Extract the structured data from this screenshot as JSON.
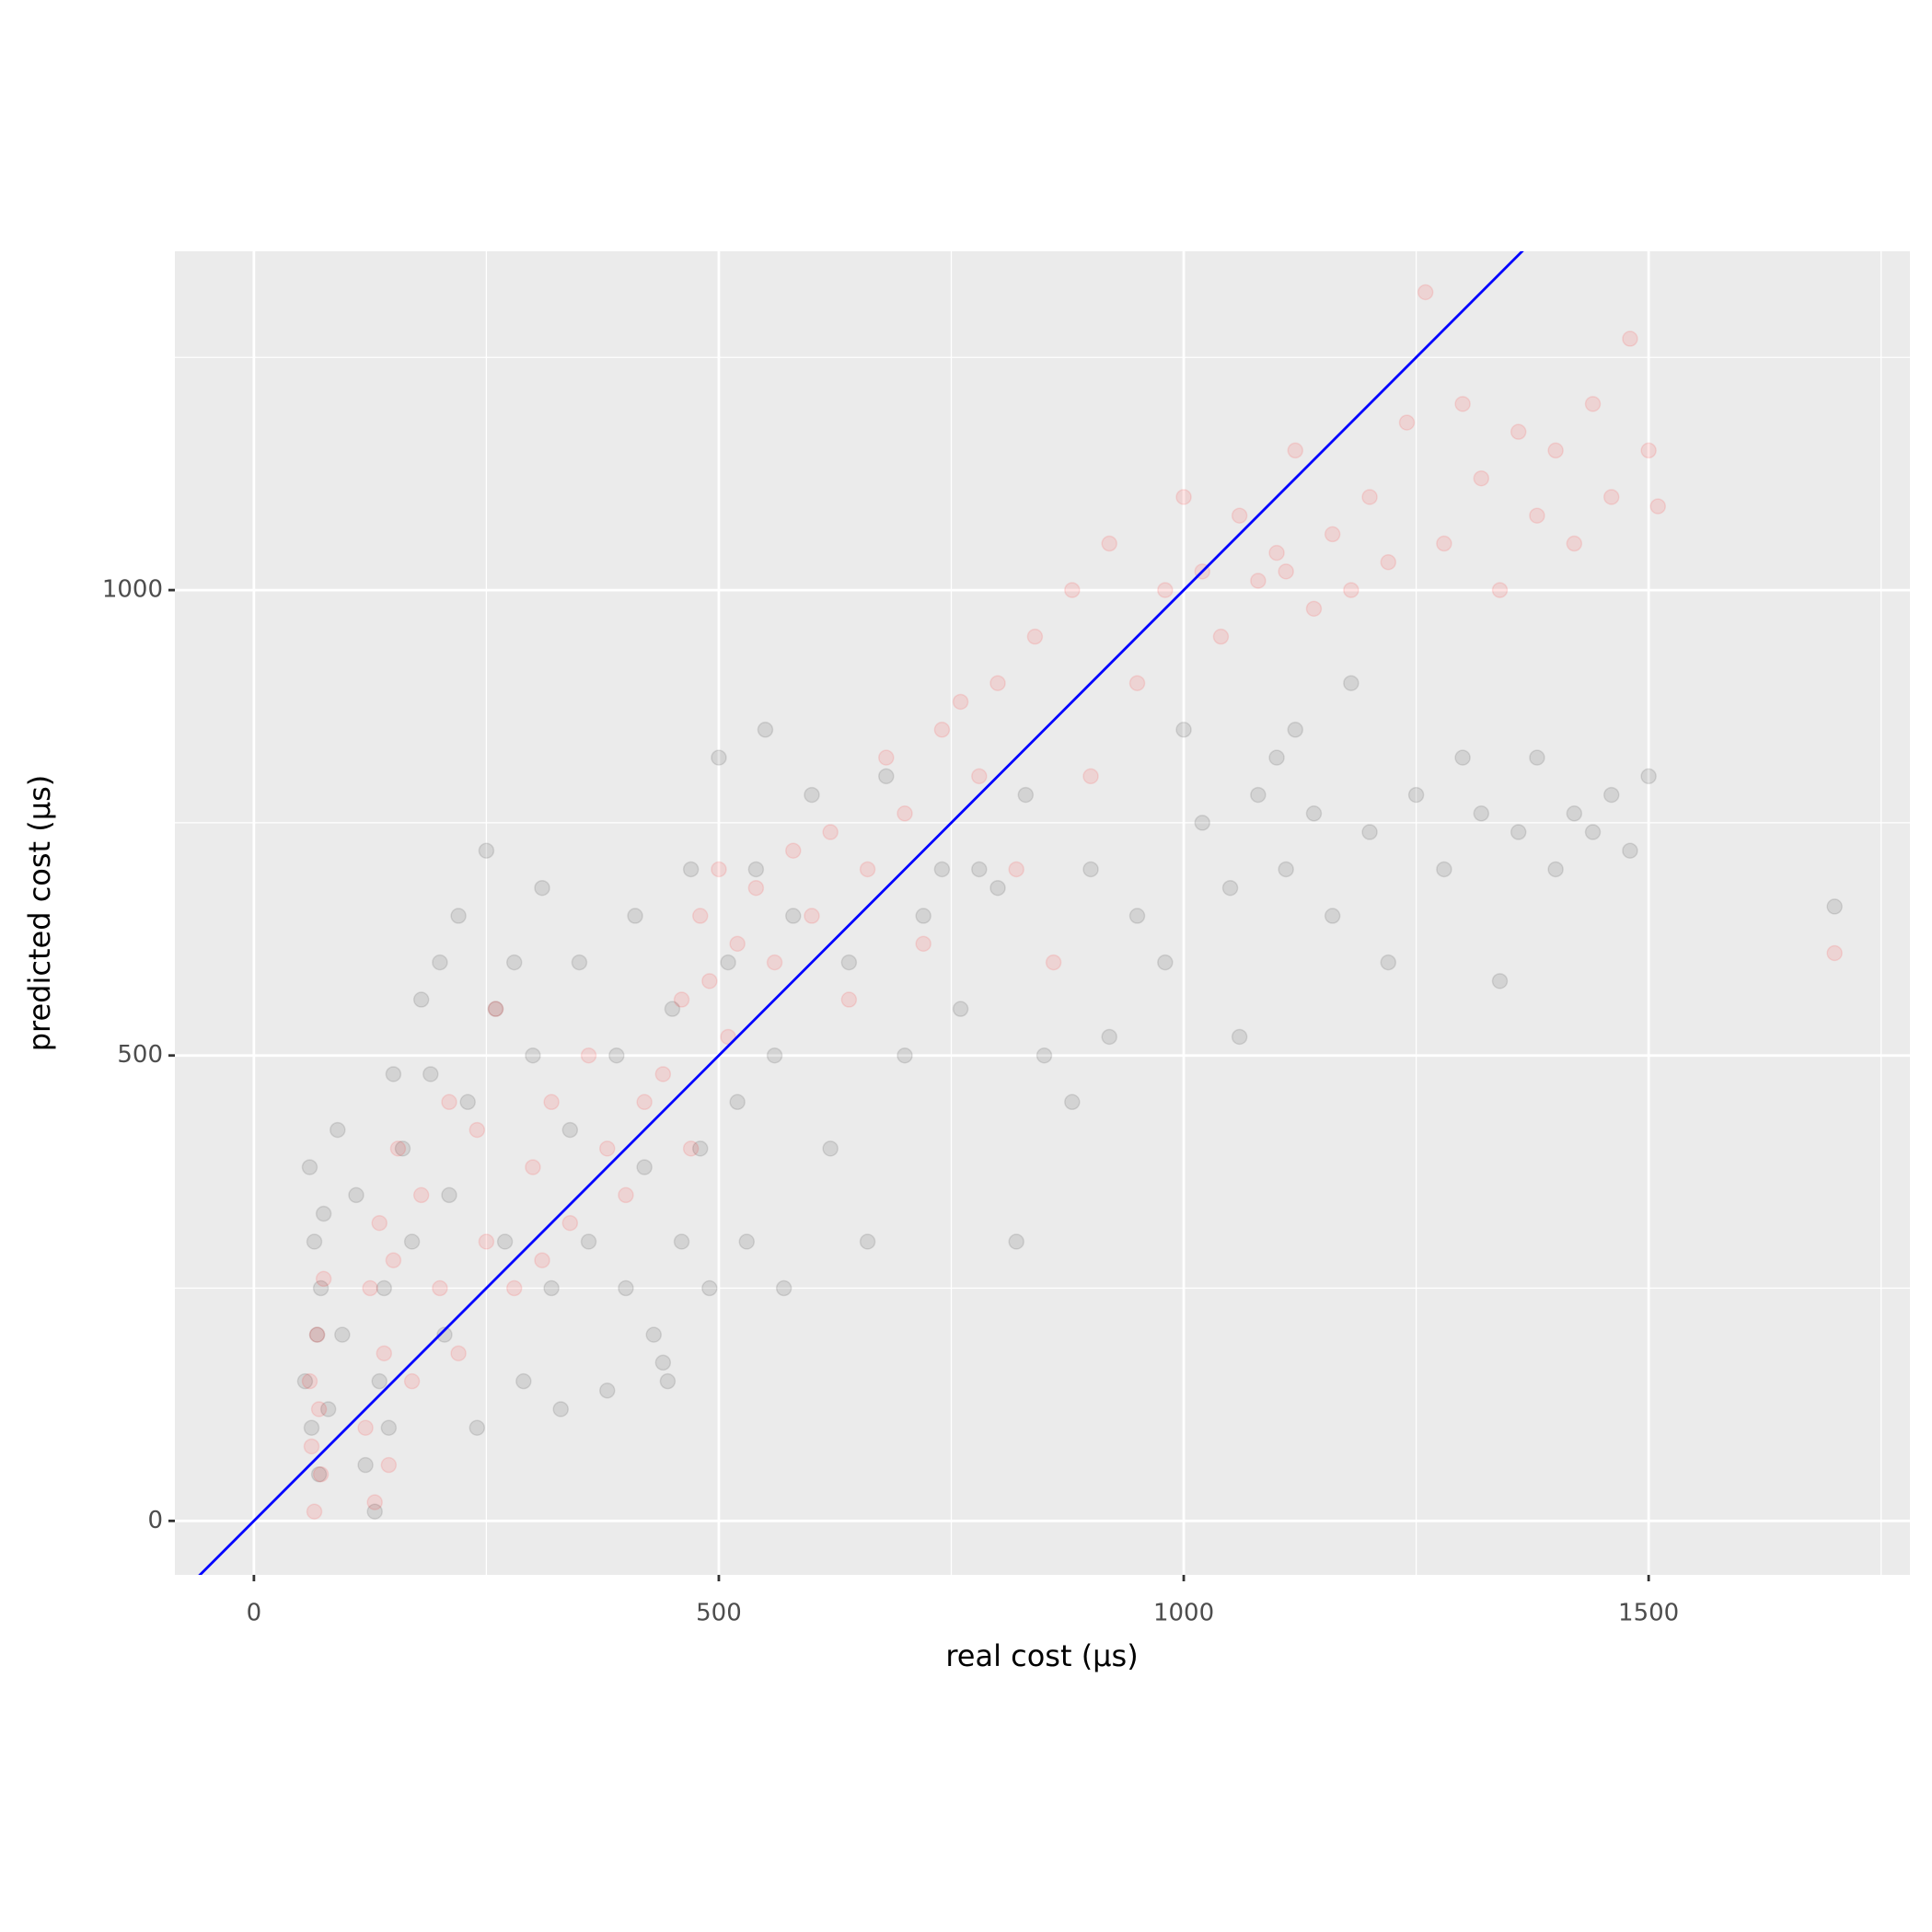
{
  "chart_data": {
    "type": "scatter",
    "x_label": "real cost (µs)",
    "y_label": "predicted cost (µs)",
    "xlim": [
      -85,
      1781
    ],
    "ylim": [
      -58,
      1364
    ],
    "xticks": [
      0,
      500,
      1000,
      1500
    ],
    "yticks": [
      0,
      500,
      1000
    ],
    "minor_xticks": [
      250,
      750,
      1250,
      1750
    ],
    "minor_yticks": [
      250,
      750,
      1250
    ],
    "grid": true,
    "alpha": 0.1,
    "reference_line": {
      "slope": 1,
      "intercept": 0,
      "color": "#0000ff"
    },
    "series": [
      {
        "color": "#000000",
        "x": [
          55,
          60,
          62,
          65,
          68,
          70,
          72,
          75,
          80,
          90,
          95,
          110,
          120,
          130,
          135,
          140,
          145,
          150,
          160,
          170,
          180,
          190,
          200,
          205,
          210,
          220,
          230,
          240,
          250,
          260,
          270,
          280,
          290,
          300,
          310,
          320,
          330,
          340,
          350,
          360,
          380,
          390,
          400,
          410,
          420,
          430,
          440,
          445,
          450,
          460,
          470,
          480,
          490,
          500,
          510,
          520,
          530,
          540,
          550,
          560,
          570,
          580,
          600,
          620,
          640,
          660,
          680,
          700,
          720,
          740,
          760,
          780,
          800,
          820,
          830,
          850,
          880,
          900,
          920,
          950,
          980,
          1000,
          1020,
          1050,
          1060,
          1080,
          1100,
          1110,
          1120,
          1140,
          1160,
          1180,
          1200,
          1220,
          1250,
          1280,
          1300,
          1320,
          1340,
          1360,
          1380,
          1400,
          1420,
          1440,
          1460,
          1480,
          1500,
          1700
        ],
        "values": [
          150,
          380,
          100,
          300,
          200,
          50,
          250,
          330,
          120,
          420,
          200,
          350,
          60,
          10,
          150,
          250,
          100,
          480,
          400,
          300,
          560,
          480,
          600,
          200,
          350,
          650,
          450,
          100,
          720,
          550,
          300,
          600,
          150,
          500,
          680,
          250,
          120,
          420,
          600,
          300,
          140,
          500,
          250,
          650,
          380,
          200,
          170,
          150,
          550,
          300,
          700,
          400,
          250,
          820,
          600,
          450,
          300,
          700,
          850,
          500,
          250,
          650,
          780,
          400,
          600,
          300,
          800,
          500,
          650,
          700,
          550,
          700,
          680,
          300,
          780,
          500,
          450,
          700,
          520,
          650,
          600,
          850,
          750,
          680,
          520,
          780,
          820,
          700,
          850,
          760,
          650,
          900,
          740,
          600,
          780,
          700,
          820,
          760,
          580,
          740,
          820,
          700,
          760,
          740,
          780,
          720,
          800,
          660
        ]
      },
      {
        "color": "#ff0000",
        "x": [
          60,
          62,
          65,
          68,
          70,
          72,
          75,
          120,
          125,
          130,
          135,
          140,
          145,
          150,
          155,
          170,
          180,
          200,
          210,
          220,
          240,
          250,
          260,
          280,
          300,
          310,
          320,
          340,
          360,
          380,
          400,
          420,
          440,
          460,
          470,
          480,
          490,
          500,
          510,
          520,
          540,
          560,
          580,
          600,
          620,
          640,
          660,
          680,
          700,
          720,
          740,
          760,
          780,
          800,
          820,
          840,
          860,
          880,
          900,
          920,
          950,
          980,
          1000,
          1020,
          1040,
          1060,
          1080,
          1100,
          1110,
          1120,
          1140,
          1160,
          1180,
          1200,
          1220,
          1240,
          1260,
          1280,
          1300,
          1320,
          1340,
          1360,
          1380,
          1400,
          1420,
          1440,
          1460,
          1480,
          1500,
          1510,
          1700
        ],
        "values": [
          150,
          80,
          10,
          200,
          120,
          50,
          260,
          100,
          250,
          20,
          320,
          180,
          60,
          280,
          400,
          150,
          350,
          250,
          450,
          180,
          420,
          300,
          550,
          250,
          380,
          280,
          450,
          320,
          500,
          400,
          350,
          450,
          480,
          560,
          400,
          650,
          580,
          700,
          520,
          620,
          680,
          600,
          720,
          650,
          740,
          560,
          700,
          820,
          760,
          620,
          850,
          880,
          800,
          900,
          700,
          950,
          600,
          1000,
          800,
          1050,
          900,
          1000,
          1100,
          1020,
          950,
          1080,
          1010,
          1040,
          1020,
          1150,
          980,
          1060,
          1000,
          1100,
          1030,
          1180,
          1320,
          1050,
          1200,
          1120,
          1000,
          1170,
          1080,
          1150,
          1050,
          1200,
          1100,
          1270,
          1150,
          1090,
          610
        ]
      }
    ]
  }
}
